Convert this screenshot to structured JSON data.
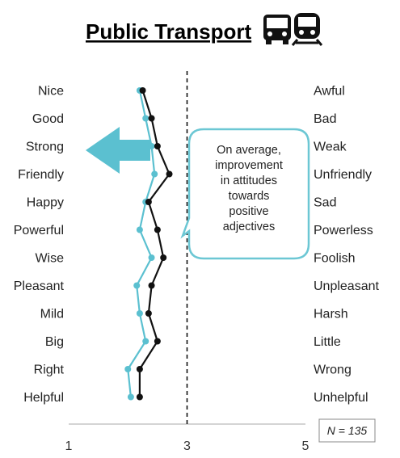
{
  "title": "Public Transport",
  "icons": [
    "bus-icon",
    "train-icon"
  ],
  "colors": {
    "before": "#5bc0d0",
    "after": "#111111",
    "arrow": "#5bc0d0",
    "callout_border": "#6cc7d4"
  },
  "callout": {
    "lines": [
      "On average,",
      "improvement",
      "in attitudes",
      "towards",
      "positive",
      "adjectives"
    ]
  },
  "n_label": "N = 135",
  "chart_data": {
    "type": "line",
    "orientation": "horizontal-profile",
    "title": "Public Transport",
    "left_labels": [
      "Nice",
      "Good",
      "Strong",
      "Friendly",
      "Happy",
      "Powerful",
      "Wise",
      "Pleasant",
      "Mild",
      "Big",
      "Right",
      "Helpful"
    ],
    "right_labels": [
      "Awful",
      "Bad",
      "Weak",
      "Unfriendly",
      "Sad",
      "Powerless",
      "Foolish",
      "Unpleasant",
      "Harsh",
      "Little",
      "Wrong",
      "Unhelpful"
    ],
    "x_ticks": [
      "1",
      "3",
      "5"
    ],
    "xlim": [
      1,
      5
    ],
    "midline": 3,
    "series": [
      {
        "values": [
          2.2,
          2.3,
          2.4,
          2.45,
          2.3,
          2.2,
          2.4,
          2.15,
          2.2,
          2.3,
          2.0,
          2.05
        ]
      },
      {
        "values": [
          2.25,
          2.4,
          2.5,
          2.7,
          2.35,
          2.5,
          2.6,
          2.4,
          2.35,
          2.5,
          2.2,
          2.2
        ]
      }
    ]
  }
}
